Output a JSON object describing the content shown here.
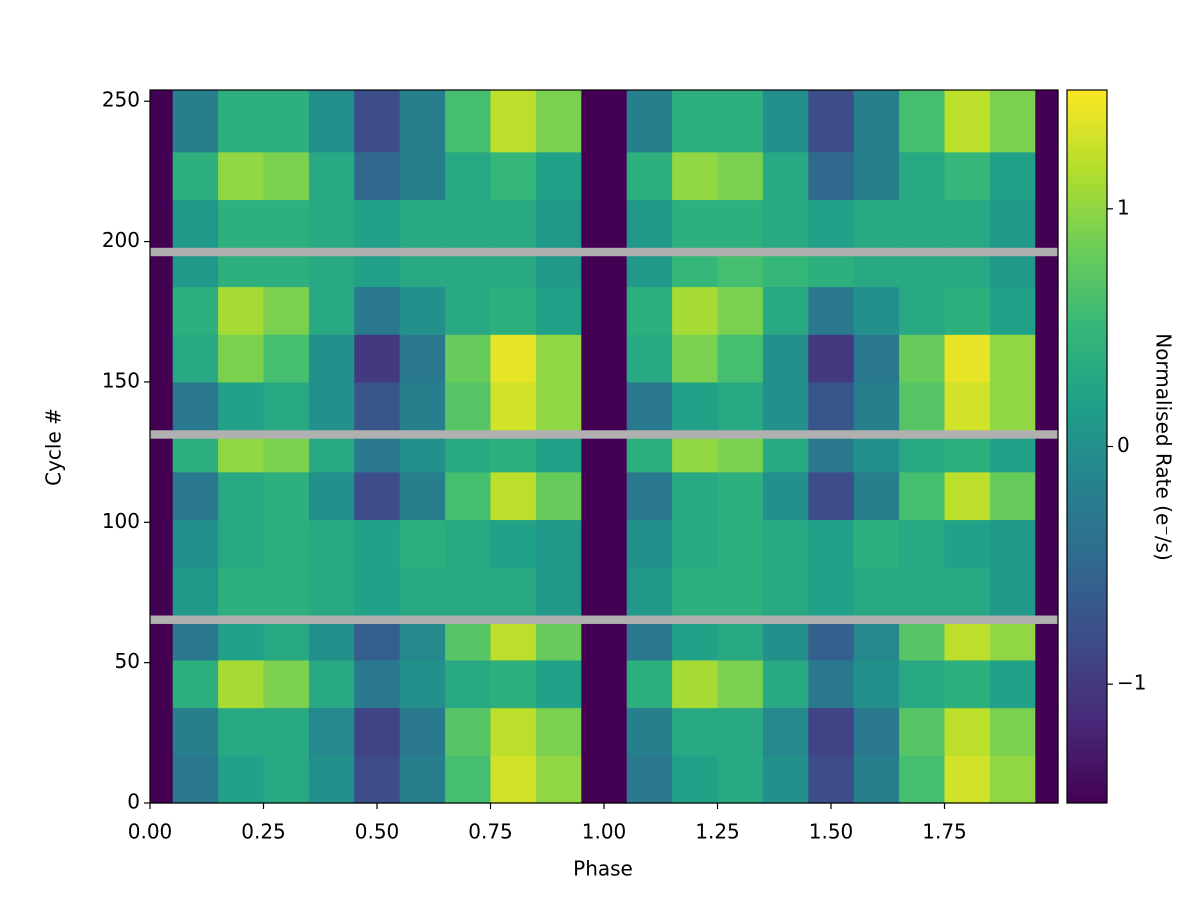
{
  "chart_data": {
    "type": "heatmap",
    "xlabel": "Phase",
    "ylabel": "Cycle #",
    "colorbar_label": "Normalised Rate (e⁻/s)",
    "colormap": "viridis",
    "missing_color": "#b0b0b0",
    "xlim": [
      0,
      2.0
    ],
    "ylim": [
      0,
      254
    ],
    "clim": [
      -1.5,
      1.5
    ],
    "xticks": [
      {
        "value": 0,
        "label": "0.00"
      },
      {
        "value": 0.25,
        "label": "0.25"
      },
      {
        "value": 0.5,
        "label": "0.50"
      },
      {
        "value": 0.75,
        "label": "0.75"
      },
      {
        "value": 1.0,
        "label": "1.00"
      },
      {
        "value": 1.25,
        "label": "1.25"
      },
      {
        "value": 1.5,
        "label": "1.50"
      },
      {
        "value": 1.75,
        "label": "1.75"
      }
    ],
    "yticks": [
      0,
      50,
      100,
      150,
      200,
      250
    ],
    "cticks": [
      {
        "value": -1,
        "label": "−1"
      },
      0,
      1
    ],
    "xbins": [
      0,
      0.05,
      0.15,
      0.25,
      0.35,
      0.45,
      0.55,
      0.65,
      0.75,
      0.85,
      0.95,
      1.05,
      1.15,
      1.25,
      1.35,
      1.45,
      1.55,
      1.65,
      1.75,
      1.85,
      1.95,
      2.0
    ],
    "ybins": [
      0,
      17,
      34,
      51,
      64,
      67,
      84,
      101,
      118,
      130,
      133,
      150,
      167,
      184,
      195,
      198,
      215,
      232,
      254
    ],
    "values": [
      [
        -1.5,
        -0.3,
        0.2,
        0.3,
        0.0,
        -0.8,
        -0.2,
        0.6,
        1.3,
        1.0,
        -1.5,
        -0.3,
        0.2,
        0.3,
        0.0,
        -0.8,
        -0.2,
        0.6,
        1.3,
        1.0,
        -1.5
      ],
      [
        -1.5,
        -0.2,
        0.3,
        0.3,
        -0.1,
        -0.9,
        -0.3,
        0.7,
        1.2,
        0.9,
        -1.5,
        -0.2,
        0.3,
        0.3,
        -0.1,
        -0.9,
        -0.3,
        0.7,
        1.2,
        0.9,
        -1.5
      ],
      [
        -1.5,
        0.4,
        1.1,
        0.9,
        0.3,
        -0.3,
        0.0,
        0.3,
        0.4,
        0.2,
        -1.5,
        0.4,
        1.1,
        0.9,
        0.3,
        -0.3,
        0.0,
        0.3,
        0.4,
        0.2,
        -1.5
      ],
      [
        -1.5,
        -0.3,
        0.2,
        0.3,
        0.0,
        -0.6,
        -0.1,
        0.7,
        1.2,
        0.8,
        -1.5,
        -0.3,
        0.2,
        0.3,
        0.0,
        -0.6,
        -0.1,
        0.7,
        1.2,
        1.0,
        -1.5
      ],
      [
        null,
        null,
        null,
        null,
        null,
        null,
        null,
        null,
        null,
        null,
        null,
        null,
        null,
        null,
        null,
        null,
        null,
        null,
        null,
        null,
        null
      ],
      [
        -1.5,
        0.1,
        0.4,
        0.4,
        0.3,
        0.2,
        0.3,
        0.3,
        0.3,
        0.1,
        -1.5,
        0.1,
        0.4,
        0.4,
        0.3,
        0.2,
        0.3,
        0.3,
        0.3,
        0.1,
        -1.5
      ],
      [
        -1.5,
        0.0,
        0.3,
        0.4,
        0.3,
        0.2,
        0.4,
        0.3,
        0.2,
        0.1,
        -1.5,
        0.0,
        0.3,
        0.4,
        0.3,
        0.2,
        0.4,
        0.3,
        0.2,
        0.1,
        -1.5
      ],
      [
        -1.5,
        -0.3,
        0.3,
        0.4,
        0.0,
        -0.8,
        -0.2,
        0.6,
        1.2,
        0.8,
        -1.5,
        -0.3,
        0.3,
        0.4,
        0.0,
        -0.8,
        -0.2,
        0.6,
        1.2,
        0.8,
        -1.5
      ],
      [
        -1.5,
        0.4,
        1.0,
        0.9,
        0.3,
        -0.3,
        0.0,
        0.3,
        0.4,
        0.2,
        -1.5,
        0.4,
        1.0,
        0.9,
        0.3,
        -0.3,
        0.0,
        0.3,
        0.4,
        0.2,
        -1.5
      ],
      [
        null,
        null,
        null,
        null,
        null,
        null,
        null,
        null,
        null,
        null,
        null,
        null,
        null,
        null,
        null,
        null,
        null,
        null,
        null,
        null,
        null
      ],
      [
        -1.5,
        -0.3,
        0.2,
        0.3,
        0.0,
        -0.7,
        -0.2,
        0.7,
        1.3,
        1.0,
        -1.5,
        -0.3,
        0.2,
        0.3,
        0.0,
        -0.7,
        -0.2,
        0.7,
        1.3,
        1.0,
        -1.5
      ],
      [
        -1.5,
        0.3,
        0.9,
        0.6,
        0.0,
        -1.0,
        -0.3,
        0.8,
        1.4,
        1.0,
        -1.5,
        0.3,
        0.9,
        0.6,
        0.0,
        -1.0,
        -0.3,
        0.8,
        1.4,
        1.0,
        -1.5
      ],
      [
        -1.5,
        0.4,
        1.1,
        0.9,
        0.3,
        -0.3,
        0.0,
        0.3,
        0.4,
        0.2,
        -1.5,
        0.4,
        1.1,
        0.9,
        0.3,
        -0.3,
        0.0,
        0.3,
        0.4,
        0.2,
        -1.5
      ],
      [
        -1.5,
        0.1,
        0.4,
        0.4,
        0.3,
        0.2,
        0.3,
        0.3,
        0.3,
        0.1,
        -1.5,
        0.1,
        0.5,
        0.6,
        0.5,
        0.4,
        0.3,
        0.3,
        0.3,
        0.1,
        -1.5
      ],
      [
        null,
        null,
        null,
        null,
        null,
        null,
        null,
        null,
        null,
        null,
        null,
        null,
        null,
        null,
        null,
        null,
        null,
        null,
        null,
        null,
        null
      ],
      [
        -1.5,
        0.1,
        0.4,
        0.4,
        0.3,
        0.2,
        0.3,
        0.3,
        0.3,
        0.1,
        -1.5,
        0.1,
        0.4,
        0.4,
        0.3,
        0.2,
        0.3,
        0.3,
        0.3,
        0.1,
        -1.5
      ],
      [
        -1.5,
        0.4,
        1.0,
        0.9,
        0.3,
        -0.5,
        -0.2,
        0.3,
        0.5,
        0.2,
        -1.5,
        0.4,
        1.0,
        0.9,
        0.3,
        -0.5,
        -0.2,
        0.3,
        0.5,
        0.2,
        -1.5
      ],
      [
        -1.5,
        -0.2,
        0.4,
        0.4,
        0.0,
        -0.8,
        -0.2,
        0.6,
        1.2,
        0.9,
        -1.5,
        -0.2,
        0.4,
        0.4,
        0.0,
        -0.8,
        -0.2,
        0.6,
        1.2,
        0.9,
        -1.5
      ]
    ]
  }
}
